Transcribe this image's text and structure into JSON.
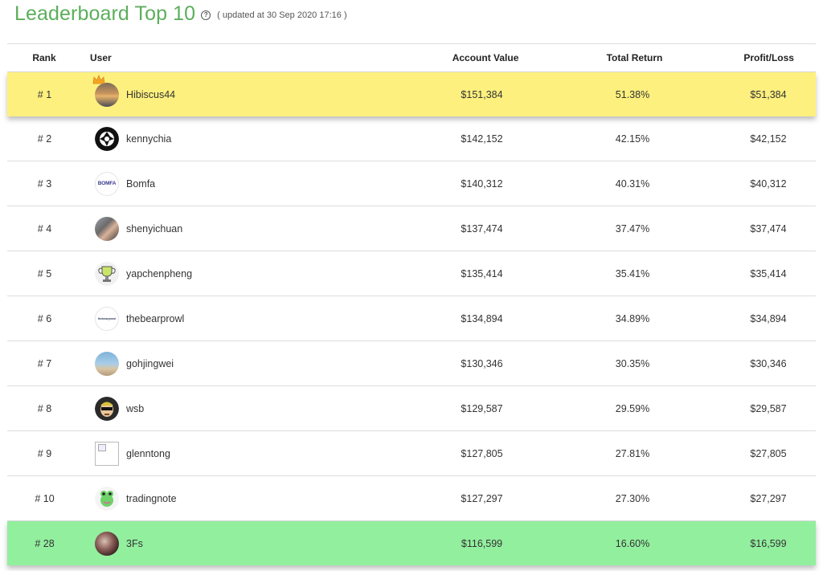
{
  "header": {
    "title": "Leaderboard Top 10",
    "updated": "( updated at 30 Sep 2020 17:16 )"
  },
  "table": {
    "columns": {
      "rank": "Rank",
      "user": "User",
      "account_value": "Account Value",
      "total_return": "Total Return",
      "profit_loss": "Profit/Loss"
    },
    "rows": [
      {
        "rank": "# 1",
        "user": "Hibiscus44",
        "account_value": "$151,384",
        "total_return": "51.38%",
        "profit_loss": "$51,384"
      },
      {
        "rank": "# 2",
        "user": "kennychia",
        "account_value": "$142,152",
        "total_return": "42.15%",
        "profit_loss": "$42,152"
      },
      {
        "rank": "# 3",
        "user": "Bomfa",
        "account_value": "$140,312",
        "total_return": "40.31%",
        "profit_loss": "$40,312"
      },
      {
        "rank": "# 4",
        "user": "shenyichuan",
        "account_value": "$137,474",
        "total_return": "37.47%",
        "profit_loss": "$37,474"
      },
      {
        "rank": "# 5",
        "user": "yapchenpheng",
        "account_value": "$135,414",
        "total_return": "35.41%",
        "profit_loss": "$35,414"
      },
      {
        "rank": "# 6",
        "user": "thebearprowl",
        "account_value": "$134,894",
        "total_return": "34.89%",
        "profit_loss": "$34,894"
      },
      {
        "rank": "# 7",
        "user": "gohjingwei",
        "account_value": "$130,346",
        "total_return": "30.35%",
        "profit_loss": "$30,346"
      },
      {
        "rank": "# 8",
        "user": "wsb",
        "account_value": "$129,587",
        "total_return": "29.59%",
        "profit_loss": "$29,587"
      },
      {
        "rank": "# 9",
        "user": "glenntong",
        "account_value": "$127,805",
        "total_return": "27.81%",
        "profit_loss": "$27,805"
      },
      {
        "rank": "# 10",
        "user": "tradingnote",
        "account_value": "$127,297",
        "total_return": "27.30%",
        "profit_loss": "$27,297"
      },
      {
        "rank": "# 28",
        "user": "3Fs",
        "account_value": "$116,599",
        "total_return": "16.60%",
        "profit_loss": "$16,599"
      }
    ]
  },
  "avatar_text": {
    "bomfa": "BOMFA",
    "bearprowl": "thebearprowl"
  },
  "colors": {
    "title": "#5cae5c",
    "first_place_row": "#fdf07e",
    "current_user_row": "#92ef9e"
  },
  "icons": {
    "help": "question-circle-icon",
    "crown": "crown-icon"
  }
}
